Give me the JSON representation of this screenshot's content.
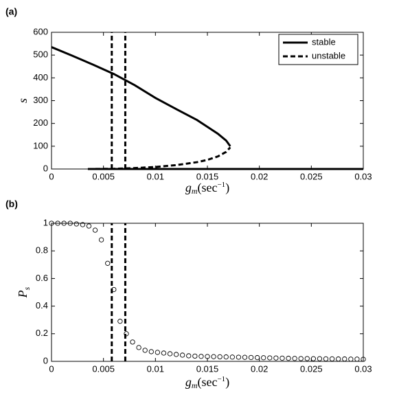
{
  "chart_data": [
    {
      "type": "line",
      "panel_label": "(a)",
      "xlabel": [
        "g",
        "m",
        "(sec",
        "−1",
        ")"
      ],
      "ylabel": [
        "s"
      ],
      "xlim": [
        0,
        0.03
      ],
      "xticks": [
        0,
        0.005,
        0.01,
        0.015,
        0.02,
        0.025,
        0.03
      ],
      "ylim": [
        0,
        600
      ],
      "yticks": [
        0,
        100,
        200,
        300,
        400,
        500,
        600
      ],
      "legend": "upper right",
      "vlines": [
        0.0058,
        0.0071
      ],
      "vline_style": "dashed",
      "color": "#000000",
      "series": [
        {
          "name": "stable",
          "style": "solid",
          "color": "#000000",
          "x": [
            0,
            0.002,
            0.004,
            0.006,
            0.008,
            0.01,
            0.012,
            0.014,
            0.015,
            0.016,
            0.0168,
            0.0172,
            null,
            0.0035,
            0.03
          ],
          "values": [
            535,
            497,
            458,
            417,
            368,
            312,
            263,
            215,
            185,
            155,
            125,
            100,
            null,
            0,
            0
          ]
        },
        {
          "name": "unstable",
          "style": "dashed",
          "color": "#000000",
          "x": [
            0.0035,
            0.006,
            0.008,
            0.01,
            0.012,
            0.014,
            0.015,
            0.016,
            0.0168,
            0.0172
          ],
          "values": [
            0,
            1,
            4,
            9,
            17,
            30,
            40,
            55,
            75,
            95
          ]
        }
      ]
    },
    {
      "type": "scatter",
      "panel_label": "(b)",
      "xlabel": [
        "g",
        "m",
        "(sec",
        "−1",
        ")"
      ],
      "ylabel": [
        "P",
        "s"
      ],
      "xlim": [
        0,
        0.03
      ],
      "xticks": [
        0,
        0.005,
        0.01,
        0.015,
        0.02,
        0.025,
        0.03
      ],
      "ylim": [
        0,
        1
      ],
      "yticks": [
        0,
        0.2,
        0.4,
        0.6,
        0.8,
        1
      ],
      "vlines": [
        0.0058,
        0.0071
      ],
      "vline_style": "dashed",
      "color": "#000000",
      "marker": "open-circle",
      "x": [
        0,
        0.0006,
        0.0012,
        0.0018,
        0.0024,
        0.003,
        0.0036,
        0.0042,
        0.0048,
        0.0054,
        0.006,
        0.0066,
        0.0072,
        0.0078,
        0.0084,
        0.009,
        0.0096,
        0.0102,
        0.0108,
        0.0114,
        0.012,
        0.0126,
        0.0132,
        0.0138,
        0.0144,
        0.015,
        0.0156,
        0.0162,
        0.0168,
        0.0174,
        0.018,
        0.0186,
        0.0192,
        0.0198,
        0.0204,
        0.021,
        0.0216,
        0.0222,
        0.0228,
        0.0234,
        0.024,
        0.0246,
        0.0252,
        0.0258,
        0.0264,
        0.027,
        0.0276,
        0.0282,
        0.0288,
        0.0294,
        0.03
      ],
      "values": [
        1,
        1,
        1,
        1,
        0.995,
        0.99,
        0.98,
        0.95,
        0.88,
        0.71,
        0.52,
        0.29,
        0.2,
        0.14,
        0.1,
        0.08,
        0.07,
        0.065,
        0.06,
        0.055,
        0.05,
        0.045,
        0.04,
        0.038,
        0.036,
        0.035,
        0.034,
        0.033,
        0.032,
        0.031,
        0.03,
        0.029,
        0.028,
        0.027,
        0.026,
        0.025,
        0.024,
        0.023,
        0.022,
        0.021,
        0.02,
        0.02,
        0.019,
        0.019,
        0.018,
        0.018,
        0.017,
        0.017,
        0.016,
        0.016,
        0.015
      ]
    }
  ]
}
